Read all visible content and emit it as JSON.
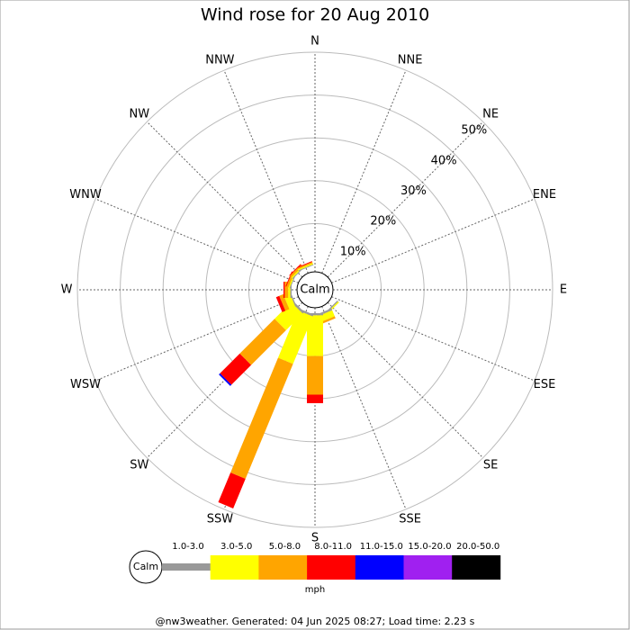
{
  "chart_data": {
    "type": "wind-rose",
    "title": "Wind rose for 20 Aug 2010",
    "categories": [
      "N",
      "NNE",
      "NE",
      "ENE",
      "E",
      "ESE",
      "SE",
      "SSE",
      "S",
      "SSW",
      "SW",
      "WSW",
      "W",
      "WNW",
      "NW",
      "NNW"
    ],
    "series": [
      {
        "name": "1.0-3.0",
        "color": "#999999",
        "values": [
          0,
          0,
          0,
          0,
          0,
          0,
          0.3,
          0.5,
          0.5,
          0.5,
          0.5,
          0.3,
          0.3,
          0.2,
          0.2,
          0.2
        ]
      },
      {
        "name": "3.0-5.0",
        "color": "#ffff00",
        "values": [
          0,
          0,
          0,
          0,
          0,
          0,
          0.3,
          1.5,
          9.5,
          12,
          5.5,
          1.5,
          0.5,
          0.3,
          0.3,
          0.3
        ]
      },
      {
        "name": "5.0-8.0",
        "color": "#ffa500",
        "values": [
          0,
          0,
          0,
          0,
          0,
          0,
          0,
          0.5,
          9,
          29,
          11.5,
          1,
          0.8,
          0.5,
          0.5,
          0.3
        ]
      },
      {
        "name": "8.0-11.0",
        "color": "#ff0000",
        "values": [
          0,
          0,
          0,
          0,
          0,
          0,
          0,
          0,
          2,
          7.5,
          6.5,
          0.8,
          0.3,
          0.2,
          0.2,
          0.2
        ]
      },
      {
        "name": "11.0-15.0",
        "color": "#0000ff",
        "values": [
          0,
          0,
          0,
          0,
          0,
          0,
          0,
          0,
          0,
          0,
          0.4,
          0,
          0,
          0,
          0,
          0
        ]
      },
      {
        "name": "15.0-20.0",
        "color": "#a020f0",
        "values": [
          0,
          0,
          0,
          0,
          0,
          0,
          0,
          0,
          0,
          0,
          0,
          0,
          0,
          0,
          0,
          0
        ]
      },
      {
        "name": "20.0-50.0",
        "color": "#000000",
        "values": [
          0,
          0,
          0,
          0,
          0,
          0,
          0,
          0,
          0,
          0,
          0,
          0,
          0,
          0,
          0,
          0
        ]
      }
    ],
    "rlim": [
      0,
      50
    ],
    "rticks": [
      {
        "value": 10,
        "label": "10%"
      },
      {
        "value": 20,
        "label": "20%"
      },
      {
        "value": 30,
        "label": "30%"
      },
      {
        "value": 40,
        "label": "40%"
      },
      {
        "value": 50,
        "label": "50%"
      }
    ],
    "calm_label": "Calm",
    "unit": "mph",
    "footer": "@nw3weather. Generated: 04 Jun 2025 08:27; Load time: 2.23 s"
  }
}
